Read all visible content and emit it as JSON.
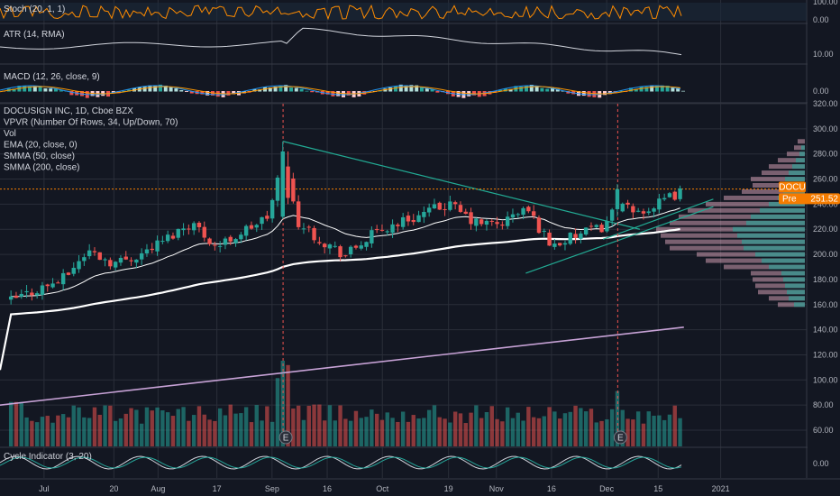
{
  "colors": {
    "background": "#131722",
    "grid": "#2a2e39",
    "up": "#26a69a",
    "down": "#ef5350",
    "ema": "#ffffff",
    "smma50": "#ffffff",
    "smma200": "#c7a2d6",
    "trendline": "#22ab94",
    "price_badge": "#f57c00",
    "stoch": "#ff8c00",
    "macd": "#2196f3",
    "signal": "#ff9800"
  },
  "panes": {
    "stoch": {
      "legend": "Stoch (20, 1, 1)",
      "ticks": [
        "100.00",
        "0.00"
      ]
    },
    "atr": {
      "legend": "ATR (14, RMA)",
      "ticks": [
        "10.00"
      ]
    },
    "macd": {
      "legend": "MACD (12, 26, close, 9)",
      "ticks": [
        "0.00"
      ]
    },
    "cycle": {
      "legend": "Cycle Indicator (3, 20)",
      "ticks": [
        "0.00"
      ]
    }
  },
  "main_legend": [
    "DOCUSIGN INC, 1D, Cboe BZX",
    "VPVR (Number Of Rows, 34, Up/Down, 70)",
    "Vol",
    "EMA (20, close, 0)",
    "SMMA (50, close)",
    "SMMA (200, close)"
  ],
  "badges": {
    "ticker": "DOCU",
    "price_prefix": "Pre",
    "price": "251.52"
  },
  "earnings_marker": "E",
  "chart_data": {
    "type": "candlestick",
    "title": "DOCUSIGN INC, 1D, Cboe BZX",
    "y_ticks": [
      "320.00",
      "300.00",
      "280.00",
      "260.00",
      "240.00",
      "220.00",
      "200.00",
      "180.00",
      "160.00",
      "140.00",
      "120.00",
      "100.00",
      "80.00",
      "60.00"
    ],
    "x_ticks": [
      "Jul",
      "20",
      "Aug",
      "17",
      "Sep",
      "16",
      "Oct",
      "19",
      "Nov",
      "16",
      "Dec",
      "15",
      "2021"
    ],
    "ylim": [
      52,
      322
    ],
    "last_price": 251.52,
    "close_path": [
      {
        "date": "2020-06-22",
        "close": 163
      },
      {
        "date": "2020-06-29",
        "close": 172
      },
      {
        "date": "2020-07-06",
        "close": 180
      },
      {
        "date": "2020-07-13",
        "close": 203
      },
      {
        "date": "2020-07-20",
        "close": 193
      },
      {
        "date": "2020-07-27",
        "close": 200
      },
      {
        "date": "2020-08-03",
        "close": 212
      },
      {
        "date": "2020-08-10",
        "close": 226
      },
      {
        "date": "2020-08-17",
        "close": 206
      },
      {
        "date": "2020-08-24",
        "close": 218
      },
      {
        "date": "2020-08-31",
        "close": 230
      },
      {
        "date": "2020-09-04",
        "close": 275
      },
      {
        "date": "2020-09-08",
        "close": 226
      },
      {
        "date": "2020-09-14",
        "close": 212
      },
      {
        "date": "2020-09-21",
        "close": 199
      },
      {
        "date": "2020-09-28",
        "close": 215
      },
      {
        "date": "2020-10-05",
        "close": 225
      },
      {
        "date": "2020-10-12",
        "close": 232
      },
      {
        "date": "2020-10-19",
        "close": 240
      },
      {
        "date": "2020-10-26",
        "close": 225
      },
      {
        "date": "2020-11-02",
        "close": 224
      },
      {
        "date": "2020-11-09",
        "close": 237
      },
      {
        "date": "2020-11-16",
        "close": 207
      },
      {
        "date": "2020-11-23",
        "close": 215
      },
      {
        "date": "2020-11-30",
        "close": 222
      },
      {
        "date": "2020-12-04",
        "close": 240
      },
      {
        "date": "2020-12-08",
        "close": 233
      },
      {
        "date": "2020-12-14",
        "close": 238
      },
      {
        "date": "2020-12-22",
        "close": 251.5
      }
    ],
    "volume_peaks": [
      {
        "date": "2020-09-04",
        "volume_axis": 116
      },
      {
        "date": "2020-12-04",
        "volume_axis": 88
      }
    ],
    "indicators": {
      "ema20_end": 245,
      "smma50_end": 213,
      "smma200_range": [
        80,
        142
      ]
    },
    "volume_profile_note": "VPVR histogram on right, heaviest near 200-230"
  }
}
